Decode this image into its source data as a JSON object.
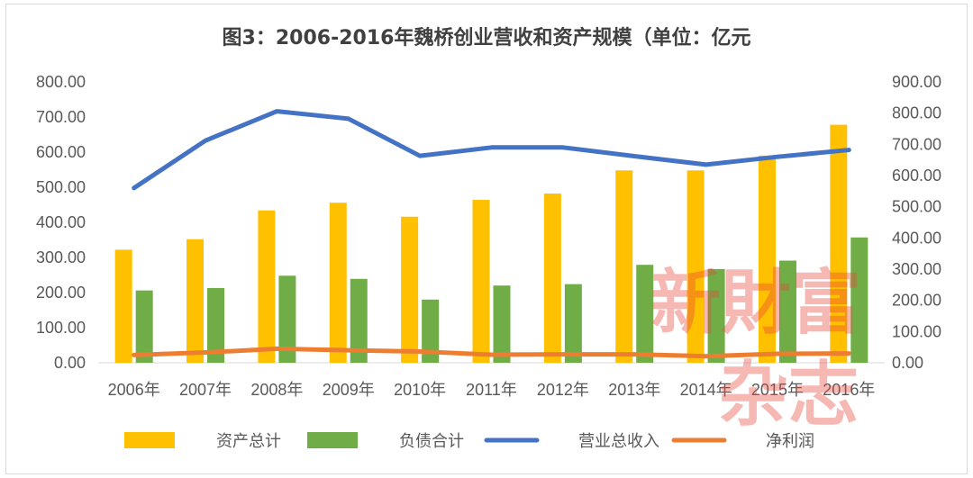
{
  "chart_data": {
    "type": "bar",
    "title": "图3：2006-2016年魏桥创业营收和资产规模（单位：亿元",
    "categories": [
      "2006年",
      "2007年",
      "2008年",
      "2009年",
      "2010年",
      "2011年",
      "2012年",
      "2013年",
      "2014年",
      "2015年",
      "2016年"
    ],
    "series": [
      {
        "name": "资产总计",
        "type": "bar",
        "axis": "left",
        "color": "#ffc000",
        "values": [
          322,
          352,
          434,
          456,
          416,
          464,
          482,
          548,
          548,
          590,
          678
        ]
      },
      {
        "name": "负债合计",
        "type": "bar",
        "axis": "left",
        "color": "#70ad47",
        "values": [
          206,
          213,
          248,
          239,
          180,
          220,
          224,
          279,
          267,
          291,
          357
        ]
      },
      {
        "name": "营业总收入",
        "type": "line",
        "axis": "right",
        "color": "#4472c4",
        "values": [
          560,
          712,
          806,
          782,
          663,
          690,
          690,
          662,
          635,
          660,
          682
        ]
      },
      {
        "name": "净利润",
        "type": "line",
        "axis": "right",
        "color": "#ed7d31",
        "values": [
          25,
          33,
          45,
          40,
          36,
          26,
          27,
          27,
          21,
          29,
          30
        ]
      }
    ],
    "y_left": {
      "min": 0,
      "max": 800,
      "step": 100,
      "tick_labels": [
        "0.00",
        "100.00",
        "200.00",
        "300.00",
        "400.00",
        "500.00",
        "600.00",
        "700.00",
        "800.00"
      ]
    },
    "y_right": {
      "min": 0,
      "max": 900,
      "step": 100,
      "tick_labels": [
        "0.00",
        "100.00",
        "200.00",
        "300.00",
        "400.00",
        "500.00",
        "600.00",
        "700.00",
        "800.00",
        "900.00"
      ]
    },
    "grid": false,
    "legend_position": "bottom"
  },
  "watermark": {
    "line1": "新財富",
    "line2": "杂志"
  }
}
